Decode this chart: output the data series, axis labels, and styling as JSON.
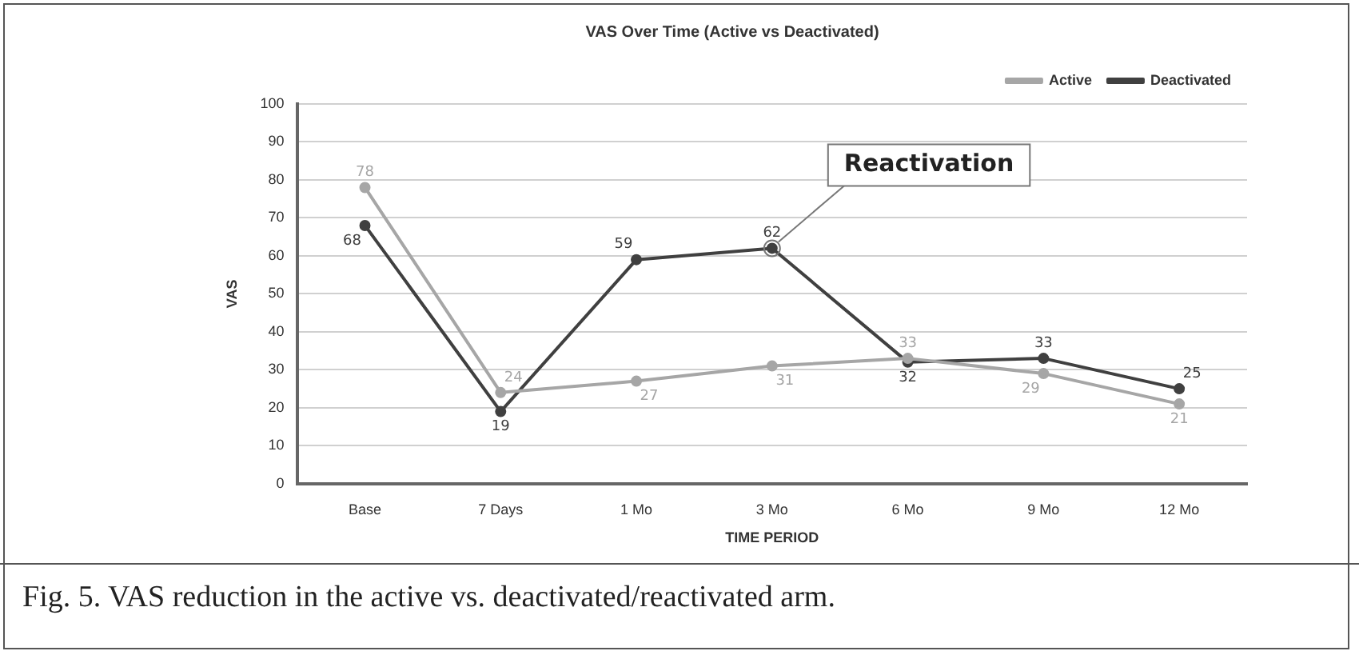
{
  "chart_data": {
    "type": "line",
    "title": "VAS Over Time (Active vs Deactivated)",
    "xlabel": "TIME PERIOD",
    "ylabel": "VAS",
    "categories": [
      "Base",
      "7 Days",
      "1 Mo",
      "3 Mo",
      "6 Mo",
      "9 Mo",
      "12 Mo"
    ],
    "series": [
      {
        "name": "Active",
        "color": "#a6a6a6",
        "values": [
          78,
          24,
          27,
          31,
          33,
          29,
          21
        ]
      },
      {
        "name": "Deactivated",
        "color": "#404040",
        "values": [
          68,
          19,
          59,
          62,
          32,
          33,
          25
        ]
      }
    ],
    "ylim": [
      0,
      100
    ],
    "yticks": [
      0,
      10,
      20,
      30,
      40,
      50,
      60,
      70,
      80,
      90,
      100
    ],
    "grid": "y",
    "legend": "top right",
    "marker": "circle",
    "data_labels": true,
    "annotations": [
      {
        "text": "Reactivation",
        "x": "3 Mo",
        "y": 62
      },
      "Fig. 5. VAS reduction in the active vs. deactivated/reactivated arm."
    ]
  }
}
